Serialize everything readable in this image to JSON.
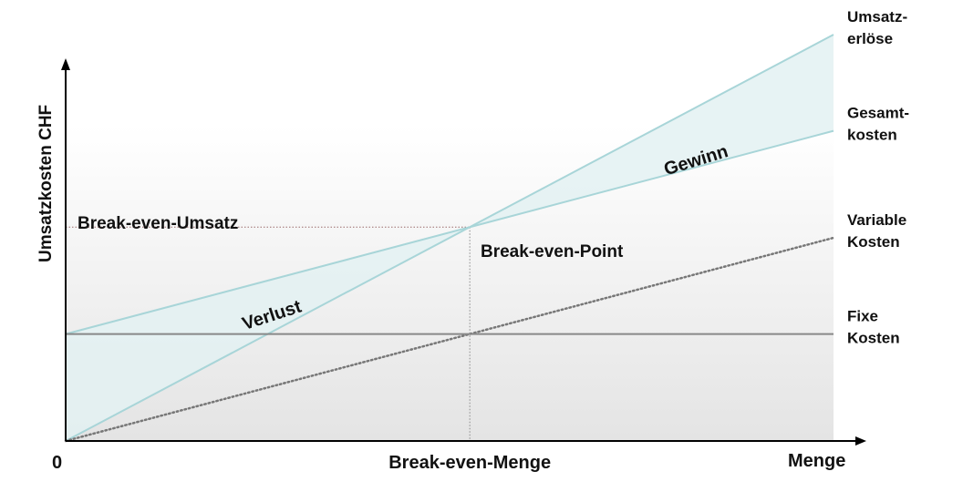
{
  "chart_data": {
    "type": "line",
    "title": "",
    "xlabel": "Menge",
    "ylabel": "Umsatzkosten CHF",
    "origin_label": "0",
    "xlim": [
      0,
      1.9
    ],
    "ylim": [
      0,
      1.9
    ],
    "x_markers": [
      {
        "value": 1,
        "label": "Break-even-Menge"
      }
    ],
    "y_markers": [
      {
        "value": 1,
        "label": "Break-even-Umsatz"
      }
    ],
    "series": [
      {
        "name": "Umsatzerlöse",
        "label_lines": [
          "Umsatz-",
          "erlöse"
        ],
        "x": [
          0,
          1.9
        ],
        "y": [
          0,
          1.9
        ],
        "style": "solid",
        "color": "#a8d5d8"
      },
      {
        "name": "Gesamtkosten",
        "label_lines": [
          "Gesamt-",
          "kosten"
        ],
        "x": [
          0,
          1.9
        ],
        "y": [
          0.5,
          1.45
        ],
        "style": "solid",
        "color": "#a8d5d8"
      },
      {
        "name": "Variable Kosten",
        "label_lines": [
          "Variable",
          "Kosten"
        ],
        "x": [
          0,
          1.9
        ],
        "y": [
          0,
          0.95
        ],
        "style": "dotted",
        "color": "#777777"
      },
      {
        "name": "Fixe Kosten",
        "label_lines": [
          "Fixe",
          "Kosten"
        ],
        "x": [
          0,
          1.9
        ],
        "y": [
          0.5,
          0.5
        ],
        "style": "solid",
        "color": "#888888"
      }
    ],
    "regions": [
      {
        "name": "Verlust",
        "label": "Verlust",
        "color": "#e3f1f2"
      },
      {
        "name": "Gewinn",
        "label": "Gewinn",
        "color": "#e3f1f2"
      }
    ],
    "annotations": [
      {
        "text": "Break-even-Point",
        "x": 1,
        "y": 1
      }
    ],
    "grid": false,
    "legend": "none"
  }
}
